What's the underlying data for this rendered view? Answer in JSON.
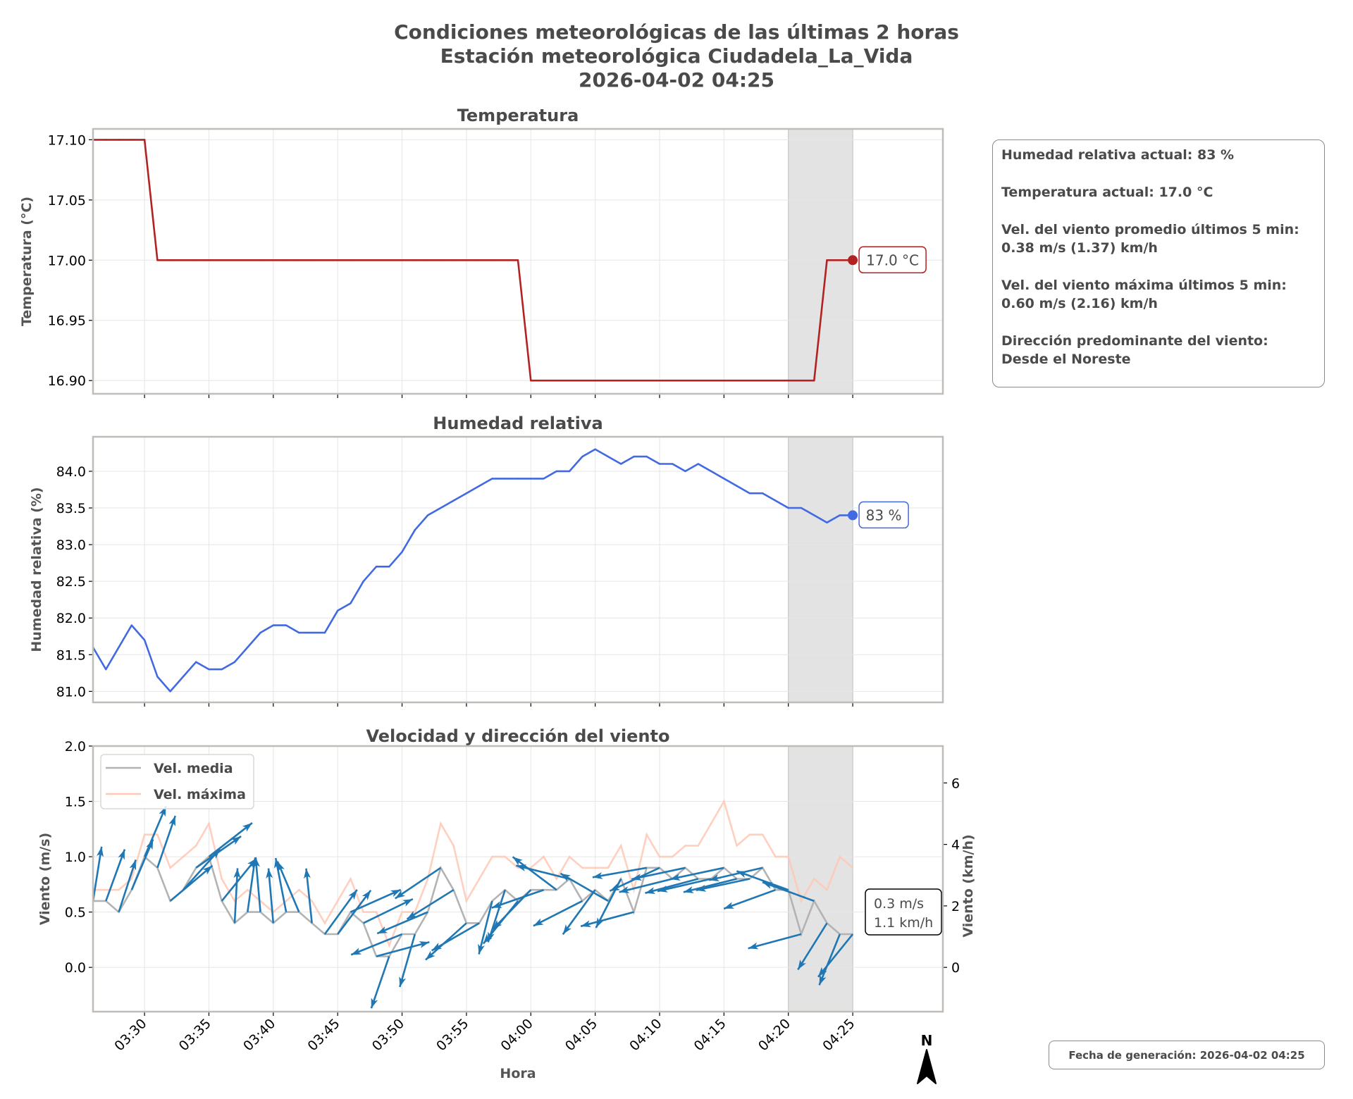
{
  "figure": {
    "title_lines": [
      "Condiciones meteorológicas de las últimas 2 horas",
      "Estación meteorológica Ciudadela_La_Vida",
      "2026-04-02 04:25"
    ],
    "x_label": "Hora",
    "footer": "Fecha de generación: 2026-04-02 04:25",
    "north_label": "N"
  },
  "info_panel": {
    "lines": [
      [
        "Humedad relativa actual: 83 %"
      ],
      [
        "Temperatura actual: 17.0 °C"
      ],
      [
        "Vel. del viento promedio últimos 5 min:",
        "0.38 m/s (1.37) km/h"
      ],
      [
        "Vel. del viento máxima últimos 5 min:",
        "0.60 m/s (2.16) km/h"
      ],
      [
        "Dirección predominante del viento:",
        "Desde el Noreste"
      ]
    ]
  },
  "colors": {
    "temperature": "#b22222",
    "humidity": "#4169e1",
    "wind_mean": "#b3b3b3",
    "wind_max": "#ffc8b4",
    "wind_arrow": "#1f77b4",
    "highlight": "#e3e3e3",
    "grid": "#e6e6e6",
    "frame": "#c0bcb8"
  },
  "chart_data": [
    {
      "type": "line",
      "title": "Temperatura",
      "xlabel": "Hora",
      "ylabel": "Temperatura (°C)",
      "x_start": "03:26",
      "x_step_min": 1,
      "xlim": [
        "03:26",
        "04:32"
      ],
      "x_ticks": [
        "03:30",
        "03:35",
        "03:40",
        "03:45",
        "03:50",
        "03:55",
        "04:00",
        "04:05",
        "04:10",
        "04:15",
        "04:20",
        "04:25"
      ],
      "ylim": [
        16.889,
        17.109
      ],
      "y_ticks": [
        16.9,
        16.95,
        17.0,
        17.05,
        17.1
      ],
      "y_tick_labels": [
        "16.90",
        "16.95",
        "17.00",
        "17.05",
        "17.10"
      ],
      "grid": true,
      "highlight_span": [
        "04:20",
        "04:25"
      ],
      "values": [
        17.1,
        17.1,
        17.1,
        17.1,
        17.1,
        17.0,
        17.0,
        17.0,
        17.0,
        17.0,
        17.0,
        17.0,
        17.0,
        17.0,
        17.0,
        17.0,
        17.0,
        17.0,
        17.0,
        17.0,
        17.0,
        17.0,
        17.0,
        17.0,
        17.0,
        17.0,
        17.0,
        17.0,
        17.0,
        17.0,
        17.0,
        17.0,
        17.0,
        17.0,
        16.9,
        16.9,
        16.9,
        16.9,
        16.9,
        16.9,
        16.9,
        16.9,
        16.9,
        16.9,
        16.9,
        16.9,
        16.9,
        16.9,
        16.9,
        16.9,
        16.9,
        16.9,
        16.9,
        16.9,
        16.9,
        16.9,
        16.9,
        17.0,
        17.0,
        17.0
      ],
      "last_label": "17.0 °C"
    },
    {
      "type": "line",
      "title": "Humedad relativa",
      "ylabel": "Humedad relativa (%)",
      "x_start": "03:26",
      "x_step_min": 1,
      "xlim": [
        "03:26",
        "04:32"
      ],
      "ylim": [
        80.85,
        84.47
      ],
      "y_ticks": [
        81.0,
        81.5,
        82.0,
        82.5,
        83.0,
        83.5,
        84.0
      ],
      "y_tick_labels": [
        "81.0",
        "81.5",
        "82.0",
        "82.5",
        "83.0",
        "83.5",
        "84.0"
      ],
      "grid": true,
      "highlight_span": [
        "04:20",
        "04:25"
      ],
      "values": [
        81.6,
        81.3,
        81.6,
        81.9,
        81.7,
        81.2,
        81.0,
        81.2,
        81.4,
        81.3,
        81.3,
        81.4,
        81.6,
        81.8,
        81.9,
        81.9,
        81.8,
        81.8,
        81.8,
        82.1,
        82.2,
        82.5,
        82.7,
        82.7,
        82.9,
        83.2,
        83.4,
        83.5,
        83.6,
        83.7,
        83.8,
        83.9,
        83.9,
        83.9,
        83.9,
        83.9,
        84.0,
        84.0,
        84.2,
        84.3,
        84.2,
        84.1,
        84.2,
        84.2,
        84.1,
        84.1,
        84.0,
        84.1,
        84.0,
        83.9,
        83.8,
        83.7,
        83.7,
        83.6,
        83.5,
        83.5,
        83.4,
        83.3,
        83.4,
        83.4
      ],
      "last_label": "83 %"
    },
    {
      "type": "line",
      "title": "Velocidad y dirección del viento",
      "ylabel": "Viento (m/s)",
      "ylabel_right": "Viento (km/h)",
      "x_start": "03:26",
      "x_step_min": 1,
      "xlim": [
        "03:26",
        "04:32"
      ],
      "ylim": [
        -0.4,
        2.0
      ],
      "y_ticks": [
        0.0,
        0.5,
        1.0,
        1.5,
        2.0
      ],
      "y_tick_labels": [
        "0.0",
        "0.5",
        "1.0",
        "1.5",
        "2.0"
      ],
      "y_ticks_right": [
        0,
        2,
        4,
        6
      ],
      "y_tick_labels_right": [
        "0",
        "2",
        "4",
        "6"
      ],
      "grid": true,
      "legend": {
        "position": "upper-left",
        "entries": [
          "Vel. media",
          "Vel. máxima"
        ]
      },
      "highlight_span": [
        "04:20",
        "04:25"
      ],
      "series": [
        {
          "name": "Vel. media",
          "values": [
            0.6,
            0.6,
            0.5,
            0.7,
            1.0,
            0.9,
            0.6,
            0.7,
            0.9,
            1.0,
            0.6,
            0.4,
            0.5,
            0.5,
            0.4,
            0.5,
            0.5,
            0.4,
            0.3,
            0.3,
            0.5,
            0.4,
            0.1,
            0.1,
            0.3,
            0.3,
            0.5,
            0.9,
            0.7,
            0.4,
            0.4,
            0.6,
            0.7,
            0.6,
            0.7,
            0.7,
            0.7,
            0.8,
            0.6,
            0.7,
            0.6,
            0.8,
            0.5,
            0.9,
            0.9,
            0.8,
            0.9,
            0.8,
            0.8,
            0.9,
            0.8,
            0.8,
            0.9,
            0.7,
            0.7,
            0.3,
            0.6,
            0.4,
            0.3,
            0.3
          ]
        },
        {
          "name": "Vel. máxima",
          "values": [
            0.7,
            0.7,
            0.7,
            0.8,
            1.2,
            1.2,
            0.9,
            1.0,
            1.1,
            1.3,
            0.8,
            0.6,
            0.7,
            0.6,
            0.5,
            0.6,
            0.7,
            0.6,
            0.4,
            0.6,
            0.8,
            0.5,
            0.5,
            0.2,
            0.5,
            0.5,
            0.8,
            1.3,
            1.1,
            0.6,
            0.8,
            1.0,
            1.0,
            0.9,
            0.9,
            1.0,
            0.8,
            1.0,
            0.9,
            0.9,
            0.9,
            1.1,
            0.7,
            1.2,
            1.0,
            1.0,
            1.1,
            1.1,
            1.3,
            1.5,
            1.1,
            1.2,
            1.2,
            1.0,
            1.0,
            0.6,
            0.8,
            0.7,
            1.0,
            0.9
          ]
        }
      ],
      "arrow_bearing_deg": [
        9,
        20,
        18,
        23,
        23,
        19,
        50,
        42,
        55,
        52,
        39,
        3,
        8,
        355,
        355,
        349,
        337,
        354,
        36,
        37,
        66,
        64,
        75,
        199,
        248,
        196,
        247,
        236,
        238,
        228,
        240,
        194,
        198,
        219,
        224,
        251,
        307,
        284,
        243,
        216,
        300,
        207,
        255,
        260,
        245,
        256,
        258,
        255,
        257,
        258,
        256,
        258,
        257,
        250,
        290,
        255,
        290,
        212,
        202,
        219
      ],
      "last_label_lines": [
        "0.3 m/s",
        "1.1 km/h"
      ]
    }
  ]
}
